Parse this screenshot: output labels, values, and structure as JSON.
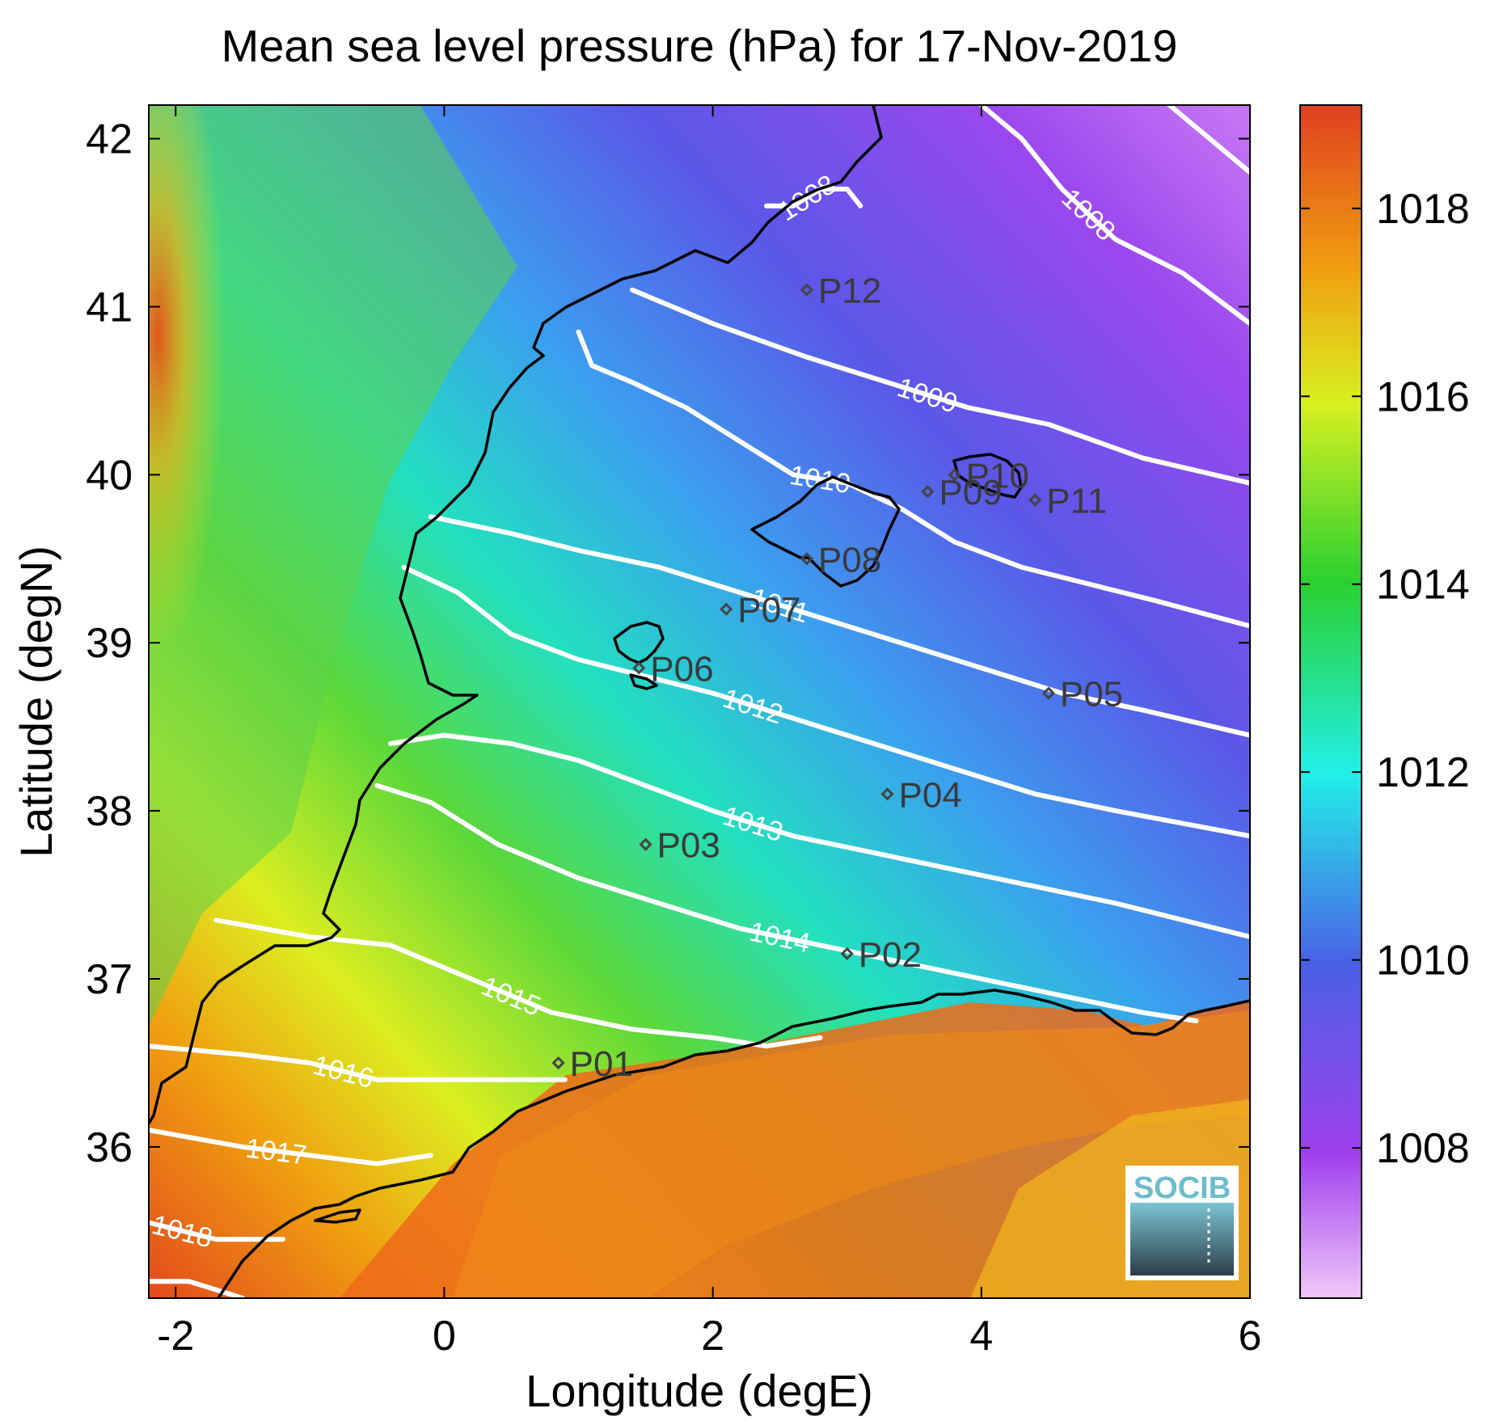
{
  "title": "Mean sea level pressure (hPa) for 17-Nov-2019",
  "x_axis": {
    "label": "Longitude (degE)",
    "range": [
      -2.2,
      6.0
    ],
    "ticks": [
      -2,
      0,
      2,
      4,
      6
    ],
    "tick_labels": [
      "-2",
      "0",
      "2",
      "4",
      "6"
    ]
  },
  "y_axis": {
    "label": "Latitude (degN)",
    "range": [
      35.1,
      42.2
    ],
    "ticks": [
      36,
      37,
      38,
      39,
      40,
      41,
      42
    ],
    "tick_labels": [
      "36",
      "37",
      "38",
      "39",
      "40",
      "41",
      "42"
    ]
  },
  "colorbar": {
    "range": [
      1006.4,
      1019.1
    ],
    "ticks": [
      1008,
      1010,
      1012,
      1014,
      1016,
      1018
    ],
    "tick_labels": [
      "1008",
      "1010",
      "1012",
      "1014",
      "1016",
      "1018"
    ],
    "colors": [
      "#f0c8f8",
      "#a040ee",
      "#4a60e6",
      "#22f0e8",
      "#2ad030",
      "#d8f020",
      "#f0a010",
      "#e04020"
    ]
  },
  "logo": {
    "text": "SOCIB"
  },
  "chart_data": {
    "type": "heatmap",
    "title": "Mean sea level pressure (hPa) for 17-Nov-2019",
    "xlabel": "Longitude (degE)",
    "ylabel": "Latitude (degN)",
    "xlim": [
      -2.2,
      6.0
    ],
    "ylim": [
      35.1,
      42.2
    ],
    "units": "hPa",
    "contours": [
      {
        "level": 1008,
        "label": "1008",
        "points": [
          [
            2.4,
            41.6
          ],
          [
            2.6,
            41.6
          ],
          [
            2.8,
            41.7
          ],
          [
            3.0,
            41.7
          ],
          [
            3.1,
            41.6
          ]
        ]
      },
      {
        "level": 1008,
        "label": "1008",
        "points": [
          [
            4.0,
            42.2
          ],
          [
            4.3,
            42.0
          ],
          [
            4.6,
            41.7
          ],
          [
            5.0,
            41.4
          ],
          [
            5.5,
            41.2
          ],
          [
            6.0,
            40.9
          ]
        ]
      },
      {
        "level": 1008,
        "label": "",
        "points": [
          [
            5.4,
            42.2
          ],
          [
            5.7,
            42.0
          ],
          [
            6.0,
            41.8
          ]
        ]
      },
      {
        "level": 1009,
        "label": "1009",
        "points": [
          [
            1.4,
            41.1
          ],
          [
            2.0,
            40.9
          ],
          [
            2.7,
            40.7
          ],
          [
            3.3,
            40.55
          ],
          [
            3.9,
            40.4
          ],
          [
            4.5,
            40.3
          ],
          [
            5.2,
            40.1
          ],
          [
            6.0,
            39.95
          ]
        ]
      },
      {
        "level": 1010,
        "label": "1010",
        "points": [
          [
            1.0,
            40.85
          ],
          [
            1.1,
            40.65
          ],
          [
            1.4,
            40.55
          ],
          [
            1.8,
            40.4
          ],
          [
            2.2,
            40.2
          ],
          [
            2.6,
            40.0
          ],
          [
            3.0,
            39.95
          ],
          [
            3.4,
            39.8
          ],
          [
            3.8,
            39.6
          ],
          [
            4.3,
            39.45
          ],
          [
            4.8,
            39.35
          ],
          [
            5.3,
            39.25
          ],
          [
            6.0,
            39.1
          ]
        ]
      },
      {
        "level": 1011,
        "label": "1011",
        "points": [
          [
            -0.1,
            39.75
          ],
          [
            0.5,
            39.65
          ],
          [
            1.0,
            39.55
          ],
          [
            1.6,
            39.45
          ],
          [
            2.2,
            39.3
          ],
          [
            2.8,
            39.15
          ],
          [
            3.4,
            39.0
          ],
          [
            4.0,
            38.85
          ],
          [
            4.6,
            38.7
          ],
          [
            5.2,
            38.6
          ],
          [
            6.0,
            38.45
          ]
        ]
      },
      {
        "level": 1012,
        "label": "1012",
        "points": [
          [
            -0.3,
            39.45
          ],
          [
            0.1,
            39.3
          ],
          [
            0.5,
            39.05
          ],
          [
            1.0,
            38.9
          ],
          [
            1.5,
            38.8
          ],
          [
            2.0,
            38.7
          ],
          [
            2.6,
            38.55
          ],
          [
            3.2,
            38.4
          ],
          [
            3.8,
            38.25
          ],
          [
            4.4,
            38.1
          ],
          [
            5.0,
            38.0
          ],
          [
            6.0,
            37.85
          ]
        ]
      },
      {
        "level": 1013,
        "label": "1013",
        "points": [
          [
            -0.4,
            38.4
          ],
          [
            0.0,
            38.45
          ],
          [
            0.5,
            38.4
          ],
          [
            1.0,
            38.3
          ],
          [
            1.5,
            38.15
          ],
          [
            2.0,
            38.0
          ],
          [
            2.6,
            37.85
          ],
          [
            3.2,
            37.75
          ],
          [
            3.8,
            37.65
          ],
          [
            4.4,
            37.55
          ],
          [
            5.0,
            37.45
          ],
          [
            6.0,
            37.25
          ]
        ]
      },
      {
        "level": 1014,
        "label": "1014",
        "points": [
          [
            -0.5,
            38.15
          ],
          [
            -0.1,
            38.05
          ],
          [
            0.4,
            37.8
          ],
          [
            1.0,
            37.6
          ],
          [
            1.6,
            37.45
          ],
          [
            2.2,
            37.3
          ],
          [
            2.8,
            37.2
          ],
          [
            3.4,
            37.1
          ],
          [
            4.0,
            37.0
          ],
          [
            4.6,
            36.9
          ],
          [
            5.2,
            36.8
          ],
          [
            5.6,
            36.75
          ]
        ]
      },
      {
        "level": 1015,
        "label": "1015",
        "points": [
          [
            -1.7,
            37.35
          ],
          [
            -1.0,
            37.25
          ],
          [
            -0.4,
            37.2
          ],
          [
            0.2,
            37.0
          ],
          [
            0.8,
            36.8
          ],
          [
            1.4,
            36.7
          ],
          [
            2.0,
            36.65
          ],
          [
            2.4,
            36.6
          ],
          [
            2.8,
            36.65
          ]
        ]
      },
      {
        "level": 1016,
        "label": "1016",
        "points": [
          [
            -2.2,
            36.6
          ],
          [
            -1.5,
            36.55
          ],
          [
            -1.0,
            36.5
          ],
          [
            -0.5,
            36.4
          ],
          [
            0.0,
            36.4
          ],
          [
            0.6,
            36.4
          ],
          [
            0.9,
            36.4
          ]
        ]
      },
      {
        "level": 1017,
        "label": "1017",
        "points": [
          [
            -2.2,
            36.1
          ],
          [
            -1.5,
            36.0
          ],
          [
            -1.0,
            35.95
          ],
          [
            -0.5,
            35.9
          ],
          [
            -0.1,
            35.95
          ]
        ]
      },
      {
        "level": 1018,
        "label": "1018",
        "points": [
          [
            -2.2,
            35.55
          ],
          [
            -1.7,
            35.45
          ],
          [
            -1.2,
            35.45
          ]
        ]
      },
      {
        "level": 1019,
        "label": "",
        "points": [
          [
            -2.2,
            35.2
          ],
          [
            -1.9,
            35.2
          ],
          [
            -1.5,
            35.1
          ]
        ]
      }
    ],
    "stations": [
      {
        "name": "P01",
        "lon": 0.85,
        "lat": 36.5
      },
      {
        "name": "P02",
        "lon": 3.0,
        "lat": 37.15
      },
      {
        "name": "P03",
        "lon": 1.5,
        "lat": 37.8
      },
      {
        "name": "P04",
        "lon": 3.3,
        "lat": 38.1
      },
      {
        "name": "P05",
        "lon": 4.5,
        "lat": 38.7
      },
      {
        "name": "P06",
        "lon": 1.45,
        "lat": 38.85
      },
      {
        "name": "P07",
        "lon": 2.1,
        "lat": 39.2
      },
      {
        "name": "P08",
        "lon": 2.7,
        "lat": 39.5
      },
      {
        "name": "P09",
        "lon": 3.6,
        "lat": 39.9
      },
      {
        "name": "P10",
        "lon": 3.8,
        "lat": 40.0
      },
      {
        "name": "P11",
        "lon": 4.4,
        "lat": 39.85
      },
      {
        "name": "P12",
        "lon": 2.7,
        "lat": 41.1
      }
    ]
  }
}
